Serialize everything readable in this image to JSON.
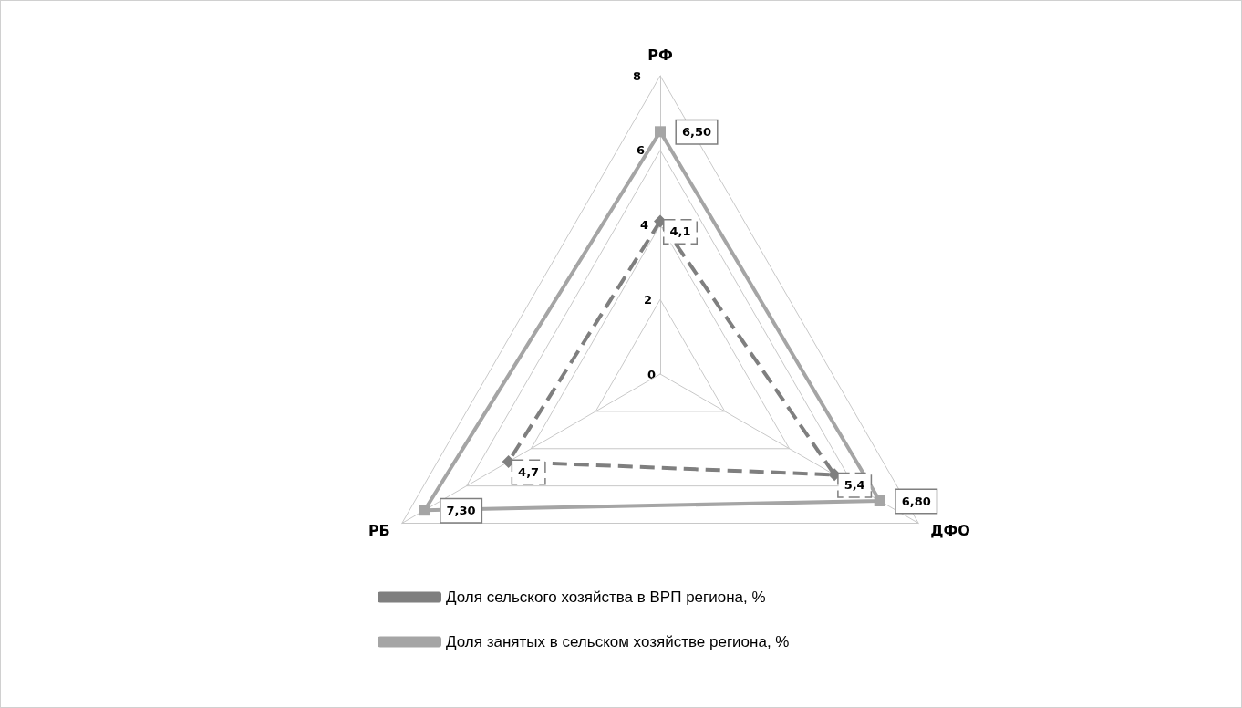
{
  "chart_data": {
    "type": "radar",
    "categories": [
      "РФ",
      "ДФО",
      "РБ"
    ],
    "series": [
      {
        "name": "Доля сельского хозяйства в ВРП региона, %",
        "color": "#7f7f7f",
        "values": [
          4.1,
          5.4,
          4.7
        ],
        "value_labels": [
          "4,1",
          "5,4",
          "4,7"
        ],
        "marker": "diamond",
        "line_style": "dashed"
      },
      {
        "name": "Доля занятых в сельском хозяйстве региона, %",
        "color": "#a5a5a5",
        "values": [
          6.5,
          6.8,
          7.3
        ],
        "value_labels": [
          "6,50",
          "6,80",
          "7,30"
        ],
        "marker": "square",
        "line_style": "solid"
      }
    ],
    "ylim": [
      0,
      8
    ],
    "yticks": [
      0,
      2,
      4,
      6,
      8
    ],
    "legend": "bottom"
  }
}
